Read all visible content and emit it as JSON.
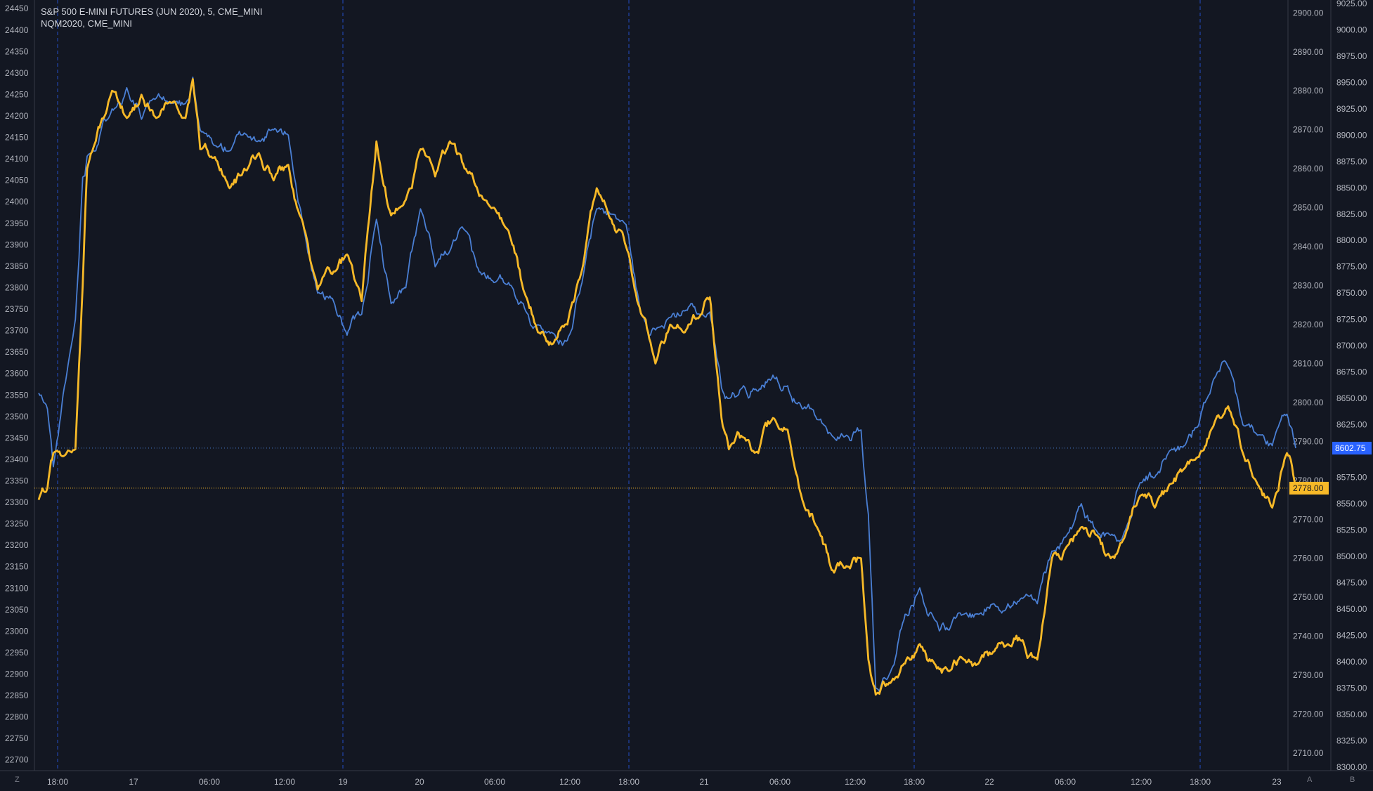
{
  "legend": {
    "primary": "S&P 500 E-MINI FUTURES (JUN 2020), 5, CME_MINI",
    "secondary": "NQM2020, CME_MINI"
  },
  "corner_labels": {
    "bottom_left": "Z",
    "bottom_right_a": "A",
    "bottom_right_b": "B"
  },
  "colors": {
    "background": "#131722",
    "grid_vline": "#2962ff",
    "es_line": "#f7b928",
    "nq_line": "#4a7fd4",
    "axis_text": "#b2b5be",
    "axis_border": "#363a45"
  },
  "chart_data": {
    "type": "line",
    "x_tick_labels": [
      "18:00",
      "17",
      "06:00",
      "12:00",
      "19",
      "20",
      "06:00",
      "12:00",
      "18:00",
      "21",
      "06:00",
      "12:00",
      "18:00",
      "22",
      "06:00",
      "12:00",
      "18:00",
      "23"
    ],
    "session_marker_labels": [
      "18:00",
      "19",
      "18:00",
      "18:00",
      "18:00"
    ],
    "left_axis": {
      "ticks": [
        22700,
        22750,
        22800,
        22850,
        22900,
        22950,
        23000,
        23050,
        23100,
        23150,
        23200,
        23250,
        23300,
        23350,
        23400,
        23450,
        23500,
        23550,
        23600,
        23650,
        23700,
        23750,
        23800,
        23850,
        23900,
        23950,
        24000,
        24050,
        24100,
        24150,
        24200,
        24250,
        24300,
        24350,
        24400,
        24450
      ],
      "range": [
        22675,
        24470
      ]
    },
    "right_axis_es": {
      "ticks": [
        "2710.00",
        "2720.00",
        "2730.00",
        "2740.00",
        "2750.00",
        "2760.00",
        "2770.00",
        "2780.00",
        "2790.00",
        "2800.00",
        "2810.00",
        "2820.00",
        "2830.00",
        "2840.00",
        "2850.00",
        "2860.00",
        "2870.00",
        "2880.00",
        "2890.00",
        "2900.00"
      ],
      "range": [
        2705.5,
        2903.3
      ],
      "last_value": "2778.00"
    },
    "right_axis_nq": {
      "ticks": [
        "8300.00",
        "8325.00",
        "8350.00",
        "8375.00",
        "8400.00",
        "8425.00",
        "8450.00",
        "8475.00",
        "8500.00",
        "8525.00",
        "8550.00",
        "8575.00",
        "8600.00",
        "8625.00",
        "8650.00",
        "8675.00",
        "8700.00",
        "8725.00",
        "8750.00",
        "8775.00",
        "8800.00",
        "8825.00",
        "8850.00",
        "8875.00",
        "8900.00",
        "8925.00",
        "8950.00",
        "8975.00",
        "9000.00",
        "9025.00"
      ],
      "range": [
        8296.5,
        9028.3
      ],
      "last_value": "8602.75"
    },
    "series": [
      {
        "name": "S&P 500 E-MINI FUTURES (JUN 2020), 5, CME_MINI",
        "axis": "es",
        "anchors": [
          [
            0.0,
            2775
          ],
          [
            0.6,
            2778
          ],
          [
            1.0,
            2787
          ],
          [
            2.5,
            2788
          ],
          [
            3.0,
            2830
          ],
          [
            3.3,
            2860
          ],
          [
            5.0,
            2880
          ],
          [
            6.0,
            2873
          ],
          [
            7.0,
            2879
          ],
          [
            8.0,
            2873
          ],
          [
            9.0,
            2877
          ],
          [
            10.0,
            2873
          ],
          [
            10.5,
            2883
          ],
          [
            11.0,
            2865
          ],
          [
            12.0,
            2863
          ],
          [
            13.0,
            2855
          ],
          [
            14.0,
            2860
          ],
          [
            15.0,
            2864
          ],
          [
            16.0,
            2857
          ],
          [
            17.0,
            2861
          ],
          [
            18.0,
            2846
          ],
          [
            19.0,
            2829
          ],
          [
            20.0,
            2833
          ],
          [
            21.0,
            2838
          ],
          [
            22.0,
            2826
          ],
          [
            23.0,
            2867
          ],
          [
            24.0,
            2848
          ],
          [
            25.0,
            2852
          ],
          [
            26.0,
            2865
          ],
          [
            27.0,
            2858
          ],
          [
            28.0,
            2867
          ],
          [
            29.0,
            2860
          ],
          [
            30.0,
            2853
          ],
          [
            31.0,
            2850
          ],
          [
            32.0,
            2844
          ],
          [
            33.0,
            2829
          ],
          [
            34.0,
            2818
          ],
          [
            35.0,
            2815
          ],
          [
            36.0,
            2820
          ],
          [
            37.0,
            2834
          ],
          [
            38.0,
            2855
          ],
          [
            39.0,
            2847
          ],
          [
            40.0,
            2840
          ],
          [
            41.0,
            2823
          ],
          [
            42.0,
            2810
          ],
          [
            43.0,
            2820
          ],
          [
            44.0,
            2818
          ],
          [
            45.0,
            2822
          ],
          [
            45.7,
            2827
          ],
          [
            46.0,
            2815
          ],
          [
            46.5,
            2796
          ],
          [
            47.0,
            2788
          ],
          [
            48.0,
            2791
          ],
          [
            49.0,
            2787
          ],
          [
            50.0,
            2796
          ],
          [
            51.0,
            2793
          ],
          [
            52.0,
            2775
          ],
          [
            53.0,
            2768
          ],
          [
            54.0,
            2757
          ],
          [
            55.0,
            2758
          ],
          [
            56.0,
            2760
          ],
          [
            56.5,
            2734
          ],
          [
            57.0,
            2725
          ],
          [
            58.0,
            2728
          ],
          [
            59.0,
            2733
          ],
          [
            60.0,
            2738
          ],
          [
            61.0,
            2733
          ],
          [
            62.0,
            2731
          ],
          [
            63.0,
            2734
          ],
          [
            64.0,
            2733
          ],
          [
            65.0,
            2736
          ],
          [
            66.0,
            2738
          ],
          [
            67.0,
            2739
          ],
          [
            68.0,
            2734
          ],
          [
            69.0,
            2760
          ],
          [
            70.0,
            2763
          ],
          [
            71.0,
            2768
          ],
          [
            72.0,
            2766
          ],
          [
            73.0,
            2760
          ],
          [
            74.0,
            2766
          ],
          [
            75.0,
            2776
          ],
          [
            76.0,
            2773
          ],
          [
            77.0,
            2779
          ],
          [
            78.0,
            2783
          ],
          [
            79.0,
            2786
          ],
          [
            80.0,
            2794
          ],
          [
            81.0,
            2799
          ],
          [
            82.0,
            2787
          ],
          [
            83.0,
            2779
          ],
          [
            84.0,
            2773
          ],
          [
            85.0,
            2787
          ],
          [
            85.6,
            2778
          ]
        ]
      },
      {
        "name": "NQM2020, CME_MINI",
        "axis": "nq",
        "anchors": [
          [
            0.0,
            8655
          ],
          [
            0.6,
            8640
          ],
          [
            1.0,
            8585
          ],
          [
            2.5,
            8725
          ],
          [
            3.0,
            8860
          ],
          [
            3.3,
            8880
          ],
          [
            5.0,
            8925
          ],
          [
            6.0,
            8945
          ],
          [
            7.0,
            8915
          ],
          [
            8.0,
            8935
          ],
          [
            9.0,
            8930
          ],
          [
            10.0,
            8930
          ],
          [
            10.5,
            8955
          ],
          [
            11.0,
            8905
          ],
          [
            12.0,
            8890
          ],
          [
            13.0,
            8885
          ],
          [
            14.0,
            8902
          ],
          [
            15.0,
            8895
          ],
          [
            16.0,
            8905
          ],
          [
            17.0,
            8900
          ],
          [
            18.0,
            8815
          ],
          [
            19.0,
            8750
          ],
          [
            20.0,
            8745
          ],
          [
            21.0,
            8710
          ],
          [
            22.0,
            8730
          ],
          [
            23.0,
            8820
          ],
          [
            24.0,
            8740
          ],
          [
            25.0,
            8755
          ],
          [
            26.0,
            8830
          ],
          [
            27.0,
            8775
          ],
          [
            28.0,
            8790
          ],
          [
            29.0,
            8810
          ],
          [
            30.0,
            8770
          ],
          [
            31.0,
            8760
          ],
          [
            32.0,
            8760
          ],
          [
            33.0,
            8740
          ],
          [
            34.0,
            8720
          ],
          [
            35.0,
            8712
          ],
          [
            36.0,
            8705
          ],
          [
            37.0,
            8760
          ],
          [
            38.0,
            8830
          ],
          [
            39.0,
            8825
          ],
          [
            40.0,
            8815
          ],
          [
            41.0,
            8730
          ],
          [
            42.0,
            8715
          ],
          [
            43.0,
            8727
          ],
          [
            44.0,
            8733
          ],
          [
            45.0,
            8730
          ],
          [
            45.7,
            8732
          ],
          [
            46.0,
            8705
          ],
          [
            46.5,
            8660
          ],
          [
            47.0,
            8650
          ],
          [
            48.0,
            8662
          ],
          [
            49.0,
            8657
          ],
          [
            50.0,
            8672
          ],
          [
            51.0,
            8662
          ],
          [
            52.0,
            8640
          ],
          [
            53.0,
            8630
          ],
          [
            54.0,
            8615
          ],
          [
            55.0,
            8615
          ],
          [
            56.0,
            8620
          ],
          [
            56.5,
            8540
          ],
          [
            57.0,
            8375
          ],
          [
            58.0,
            8390
          ],
          [
            59.0,
            8445
          ],
          [
            60.0,
            8470
          ],
          [
            61.0,
            8440
          ],
          [
            62.0,
            8430
          ],
          [
            63.0,
            8445
          ],
          [
            64.0,
            8445
          ],
          [
            65.0,
            8455
          ],
          [
            66.0,
            8455
          ],
          [
            67.0,
            8460
          ],
          [
            68.0,
            8455
          ],
          [
            69.0,
            8505
          ],
          [
            70.0,
            8520
          ],
          [
            71.0,
            8550
          ],
          [
            72.0,
            8525
          ],
          [
            73.0,
            8520
          ],
          [
            74.0,
            8525
          ],
          [
            75.0,
            8570
          ],
          [
            76.0,
            8575
          ],
          [
            77.0,
            8600
          ],
          [
            78.0,
            8605
          ],
          [
            79.0,
            8625
          ],
          [
            80.0,
            8668
          ],
          [
            81.0,
            8680
          ],
          [
            82.0,
            8625
          ],
          [
            83.0,
            8615
          ],
          [
            84.0,
            8605
          ],
          [
            85.0,
            8635
          ],
          [
            85.6,
            8602.75
          ]
        ]
      }
    ]
  }
}
